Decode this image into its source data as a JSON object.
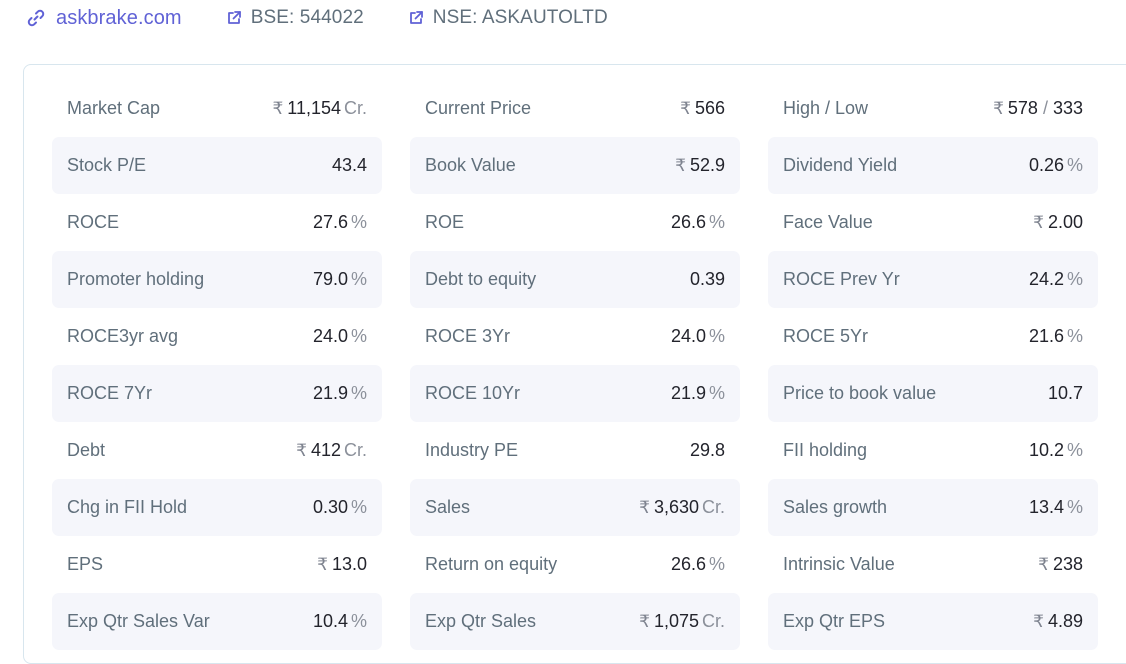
{
  "header": {
    "website": "askbrake.com",
    "bse": "BSE: 544022",
    "nse": "NSE: ASKAUTOLTD"
  },
  "currency_symbol": "₹",
  "ratios": [
    {
      "label": "Market Cap",
      "value": "11,154",
      "currency": "₹",
      "unit": "Cr."
    },
    {
      "label": "Current Price",
      "value": "566",
      "currency": "₹"
    },
    {
      "label": "High / Low",
      "value": "578",
      "value2": "333",
      "separator": "/",
      "currency": "₹"
    },
    {
      "label": "Stock P/E",
      "value": "43.4"
    },
    {
      "label": "Book Value",
      "value": "52.9",
      "currency": "₹"
    },
    {
      "label": "Dividend Yield",
      "value": "0.26",
      "unit": "%"
    },
    {
      "label": "ROCE",
      "value": "27.6",
      "unit": "%"
    },
    {
      "label": "ROE",
      "value": "26.6",
      "unit": "%"
    },
    {
      "label": "Face Value",
      "value": "2.00",
      "currency": "₹"
    },
    {
      "label": "Promoter holding",
      "value": "79.0",
      "unit": "%"
    },
    {
      "label": "Debt to equity",
      "value": "0.39"
    },
    {
      "label": "ROCE Prev Yr",
      "value": "24.2",
      "unit": "%"
    },
    {
      "label": "ROCE3yr avg",
      "value": "24.0",
      "unit": "%"
    },
    {
      "label": "ROCE 3Yr",
      "value": "24.0",
      "unit": "%"
    },
    {
      "label": "ROCE 5Yr",
      "value": "21.6",
      "unit": "%"
    },
    {
      "label": "ROCE 7Yr",
      "value": "21.9",
      "unit": "%"
    },
    {
      "label": "ROCE 10Yr",
      "value": "21.9",
      "unit": "%"
    },
    {
      "label": "Price to book value",
      "value": "10.7"
    },
    {
      "label": "Debt",
      "value": "412",
      "currency": "₹",
      "unit": "Cr."
    },
    {
      "label": "Industry PE",
      "value": "29.8"
    },
    {
      "label": "FII holding",
      "value": "10.2",
      "unit": "%"
    },
    {
      "label": "Chg in FII Hold",
      "value": "0.30",
      "unit": "%"
    },
    {
      "label": "Sales",
      "value": "3,630",
      "currency": "₹",
      "unit": "Cr."
    },
    {
      "label": "Sales growth",
      "value": "13.4",
      "unit": "%"
    },
    {
      "label": "EPS",
      "value": "13.0",
      "currency": "₹"
    },
    {
      "label": "Return on equity",
      "value": "26.6",
      "unit": "%"
    },
    {
      "label": "Intrinsic Value",
      "value": "238",
      "currency": "₹"
    },
    {
      "label": "Exp Qtr Sales Var",
      "value": "10.4",
      "unit": "%"
    },
    {
      "label": "Exp Qtr Sales",
      "value": "1,075",
      "currency": "₹",
      "unit": "Cr."
    },
    {
      "label": "Exp Qtr EPS",
      "value": "4.89",
      "currency": "₹"
    }
  ],
  "colors": {
    "link": "#6062d6",
    "label": "#606f7b",
    "row_shade": "#f5f6fb",
    "card_border": "#d8e6ee"
  }
}
